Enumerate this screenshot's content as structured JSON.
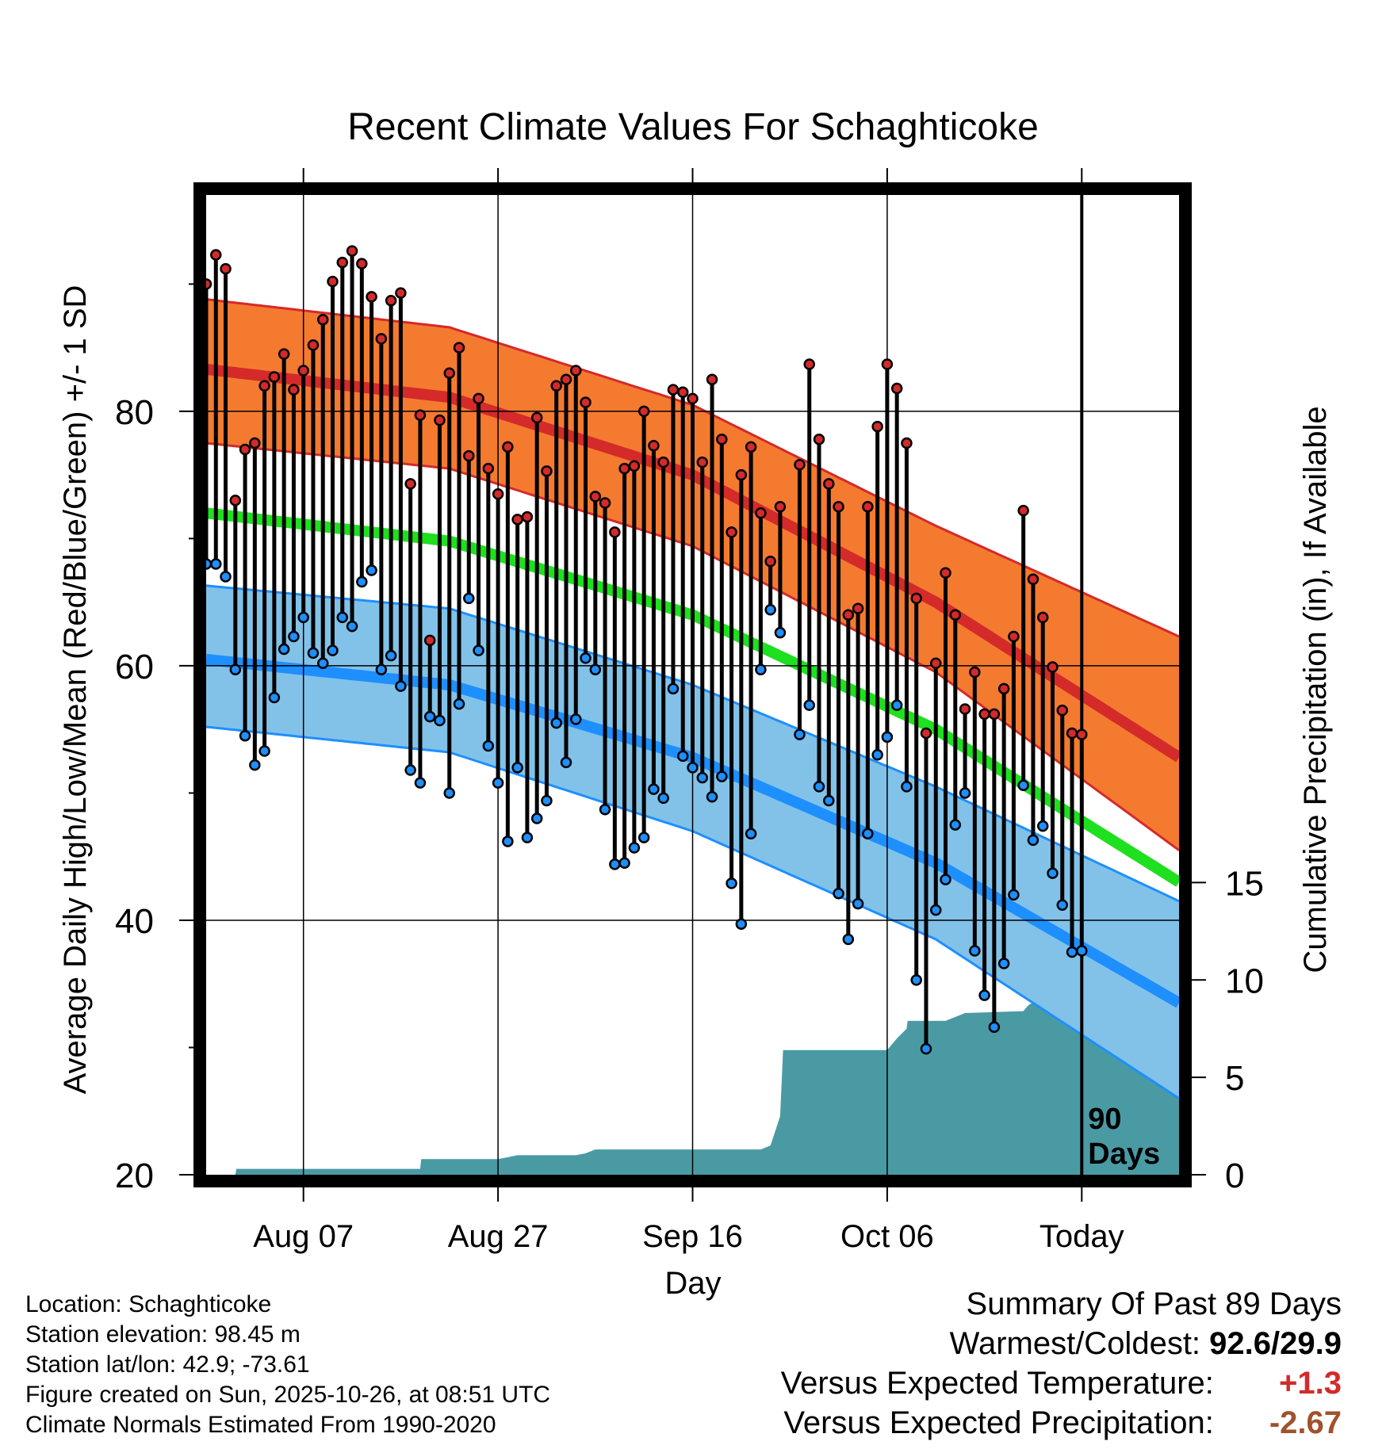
{
  "chart_data": {
    "type": "line",
    "title": "Recent Climate Values For Schaghticoke",
    "xlabel": "Day",
    "ylabel_left": "Average Daily High/Low/Mean (Red/Blue/Green) +/- 1 SD",
    "ylabel_right": "Cumulative Precipitation (in), If Available",
    "y_ticks_left": [
      "20",
      "40",
      "60",
      "80"
    ],
    "y_ticks_right": [
      "0",
      "5",
      "10",
      "15"
    ],
    "ylim_left": [
      20,
      97
    ],
    "ylim_right": [
      0,
      50.3
    ],
    "xlim_days": [
      0,
      100
    ],
    "x_ticks": [
      {
        "day": 10,
        "label": "Aug 07"
      },
      {
        "day": 30,
        "label": "Aug 27"
      },
      {
        "day": 50,
        "label": "Sep 16"
      },
      {
        "day": 70,
        "label": "Oct 06"
      },
      {
        "day": 90,
        "label": "Today"
      }
    ],
    "today_day": 90,
    "today_label_1": "90",
    "today_label_2": "Days",
    "normal_high": {
      "days": [
        0,
        25,
        50,
        75,
        100
      ],
      "values": [
        83.3,
        81.1,
        75.0,
        65.0,
        52.8
      ]
    },
    "normal_low": {
      "days": [
        0,
        25,
        50,
        75,
        100
      ],
      "values": [
        60.5,
        58.5,
        52.8,
        44.5,
        33.5
      ]
    },
    "normal_mean": {
      "days": [
        0,
        25,
        50,
        75,
        100
      ],
      "values": [
        72.0,
        69.8,
        64.0,
        55.0,
        43.0
      ]
    },
    "high_sd_upper": {
      "days": [
        0,
        25,
        50,
        75,
        100
      ],
      "values": [
        88.8,
        86.6,
        80.5,
        71.0,
        62.3
      ]
    },
    "high_sd_lower": {
      "days": [
        0,
        25,
        50,
        75,
        100
      ],
      "values": [
        77.5,
        75.5,
        69.4,
        59.5,
        45.5
      ]
    },
    "low_sd_upper": {
      "days": [
        0,
        25,
        50,
        75,
        100
      ],
      "values": [
        66.3,
        64.5,
        58.5,
        50.5,
        41.5
      ]
    },
    "low_sd_lower": {
      "days": [
        0,
        25,
        50,
        75,
        100
      ],
      "values": [
        55.2,
        53.2,
        47.0,
        38.5,
        26.0
      ]
    },
    "daily_high": [
      90.0,
      92.3,
      91.2,
      73.0,
      77.0,
      77.5,
      82.0,
      82.7,
      84.5,
      81.7,
      83.2,
      85.2,
      87.2,
      90.2,
      91.7,
      92.6,
      91.6,
      89.0,
      85.7,
      88.7,
      89.3,
      74.3,
      79.7,
      62.0,
      79.3,
      83.0,
      85.0,
      76.5,
      81.0,
      75.5,
      73.5,
      77.2,
      71.5,
      71.7,
      79.5,
      75.3,
      82.0,
      82.5,
      83.2,
      80.7,
      73.3,
      72.8,
      70.5,
      75.5,
      75.7,
      80.0,
      77.3,
      76.0,
      81.7,
      81.5,
      81.0,
      76.0,
      82.5,
      77.8,
      70.5,
      75.0,
      77.2,
      72.0,
      68.2,
      72.5,
      null,
      75.8,
      83.7,
      77.8,
      74.3,
      72.5,
      64.0,
      64.5,
      72.5,
      78.8,
      83.7,
      81.8,
      77.5,
      65.3,
      54.7,
      60.2,
      67.3,
      64.0,
      56.6,
      59.5,
      56.2,
      56.2,
      58.2,
      62.3,
      72.2,
      66.8,
      63.8,
      59.9,
      56.5,
      54.7,
      54.6
    ],
    "daily_low": [
      68.0,
      68.0,
      67.0,
      59.7,
      54.5,
      52.2,
      53.3,
      57.5,
      61.3,
      62.3,
      63.8,
      61.0,
      60.2,
      61.2,
      63.8,
      63.1,
      66.6,
      67.5,
      59.7,
      60.8,
      58.4,
      51.8,
      50.8,
      56.0,
      55.7,
      50.0,
      57.0,
      65.3,
      61.2,
      53.7,
      50.8,
      46.2,
      52.0,
      46.5,
      48.0,
      49.4,
      55.5,
      52.4,
      55.8,
      60.6,
      59.7,
      48.7,
      44.4,
      44.5,
      45.7,
      46.5,
      50.3,
      49.6,
      58.2,
      52.9,
      52.0,
      51.2,
      49.7,
      51.3,
      42.9,
      39.7,
      46.8,
      59.7,
      64.4,
      62.6,
      null,
      54.6,
      56.9,
      50.5,
      49.4,
      42.1,
      38.5,
      41.3,
      46.8,
      53.0,
      54.4,
      56.9,
      50.5,
      35.3,
      29.9,
      40.8,
      43.2,
      47.5,
      50.0,
      37.6,
      34.1,
      31.6,
      36.6,
      42.0,
      50.6,
      46.3,
      47.4,
      43.7,
      41.2,
      37.5,
      37.6
    ],
    "cumulative_precip": {
      "days": [
        0,
        3,
        3.1,
        22,
        22.1,
        30,
        31,
        32,
        38,
        39,
        40,
        57,
        58,
        59,
        59.3,
        70,
        71,
        72,
        72.1,
        76,
        77,
        78,
        84,
        84.5,
        85.5,
        88,
        100
      ],
      "values": [
        0,
        0,
        0.3,
        0.3,
        0.8,
        0.8,
        0.9,
        1.0,
        1.0,
        1.1,
        1.3,
        1.3,
        1.5,
        3.0,
        6.4,
        6.4,
        7.0,
        7.5,
        7.9,
        7.9,
        8.1,
        8.3,
        8.4,
        8.7,
        9.0,
        9.1,
        9.1
      ]
    }
  },
  "info": {
    "location": "Location: Schaghticoke",
    "elevation": "Station elevation: 98.45 m",
    "latlon": "Station lat/lon: 42.9; -73.61",
    "created": "Figure created on Sun, 2025-10-26, at 08:51 UTC",
    "normals": "Climate Normals Estimated From 1990-2020"
  },
  "summary": {
    "heading": "Summary Of Past 89 Days",
    "warm_cold_label": "Warmest/Coldest:",
    "warm_cold_value": "92.6/29.9",
    "temp_label": "Versus Expected Temperature:",
    "temp_value": "+1.3",
    "precip_label": "Versus Expected Precipitation:",
    "precip_value": "-2.67"
  },
  "colors": {
    "high_band": "#f47a30",
    "high_line": "#d42a2a",
    "low_band": "#82c2e8",
    "low_line": "#1e8fff",
    "mean_line": "#1ee01e",
    "precip_fill": "#4a9aa4",
    "high_marker": "#d42a2a",
    "low_marker": "#1e8fff"
  }
}
